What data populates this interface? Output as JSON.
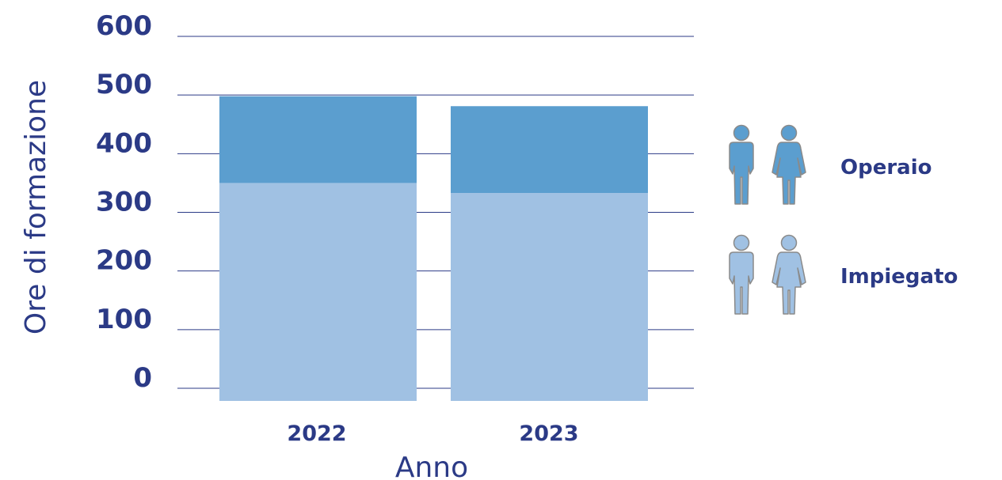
{
  "chart_data": {
    "type": "bar",
    "stacked": true,
    "categories": [
      "2022",
      "2023"
    ],
    "series": [
      {
        "name": "Impiegato",
        "values": [
          350,
          333
        ],
        "color": "#a0c1e3",
        "icon": "person-pair-icon"
      },
      {
        "name": "Operaio",
        "values": [
          148,
          148
        ],
        "color": "#5b9ecf",
        "icon": "person-pair-icon"
      }
    ],
    "xlabel": "Anno",
    "ylabel": "Ore di formazione",
    "ylim": [
      0,
      600
    ],
    "yticks": [
      "0",
      "100",
      "200",
      "300",
      "400",
      "500",
      "600"
    ],
    "grid": true,
    "legend_position": "right",
    "colors": {
      "text": "#2b3a86",
      "grid": "#2b3a86",
      "icon_outline": "#8a8a8a"
    }
  }
}
